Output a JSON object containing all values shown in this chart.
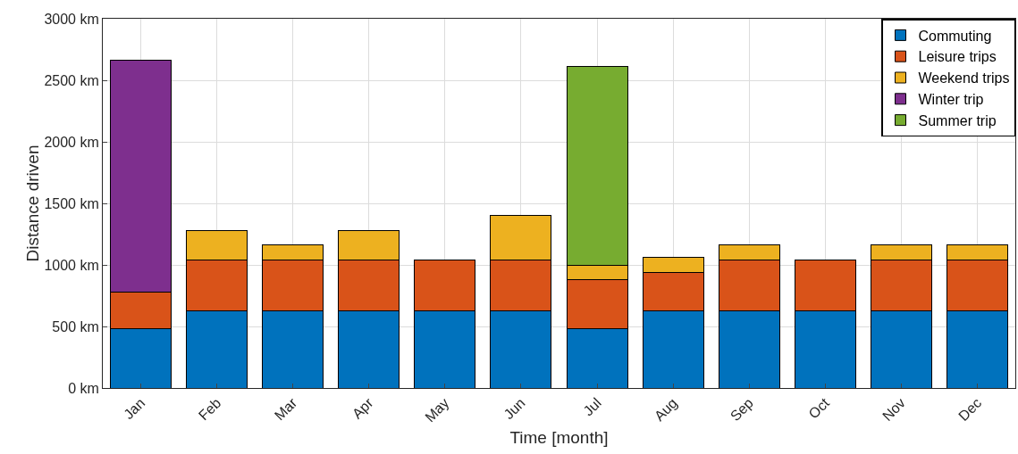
{
  "chart_data": {
    "type": "bar",
    "stacked": true,
    "xlabel": "Time [month]",
    "ylabel": "Distance driven",
    "categories": [
      "Jan",
      "Feb",
      "Mar",
      "Apr",
      "May",
      "Jun",
      "Jul",
      "Aug",
      "Sep",
      "Oct",
      "Nov",
      "Dec"
    ],
    "series": [
      {
        "name": "Commuting",
        "color": "#0072bd",
        "values": [
          480,
          630,
          630,
          630,
          630,
          630,
          480,
          630,
          630,
          630,
          630,
          630
        ]
      },
      {
        "name": "Leisure trips",
        "color": "#d95319",
        "values": [
          300,
          410,
          410,
          410,
          410,
          410,
          400,
          310,
          410,
          410,
          410,
          410
        ]
      },
      {
        "name": "Weekend trips",
        "color": "#edb120",
        "values": [
          null,
          240,
          120,
          240,
          null,
          360,
          120,
          120,
          120,
          null,
          120,
          120
        ]
      },
      {
        "name": "Winter trip",
        "color": "#7e2f8e",
        "values": [
          1880,
          null,
          null,
          null,
          null,
          null,
          null,
          null,
          null,
          null,
          null,
          null
        ]
      },
      {
        "name": "Summer trip",
        "color": "#77ac30",
        "values": [
          null,
          null,
          null,
          null,
          null,
          null,
          1610,
          null,
          null,
          null,
          null,
          null
        ]
      }
    ],
    "ylim": [
      0,
      3000
    ],
    "yticks": [
      {
        "value": 0,
        "label": "0 km"
      },
      {
        "value": 500,
        "label": "500 km"
      },
      {
        "value": 1000,
        "label": "1000 km"
      },
      {
        "value": 1500,
        "label": "1500 km"
      },
      {
        "value": 2000,
        "label": "2000 km"
      },
      {
        "value": 2500,
        "label": "2500 km"
      },
      {
        "value": 3000,
        "label": "3000 km"
      }
    ],
    "grid": true,
    "legend": "top right"
  }
}
